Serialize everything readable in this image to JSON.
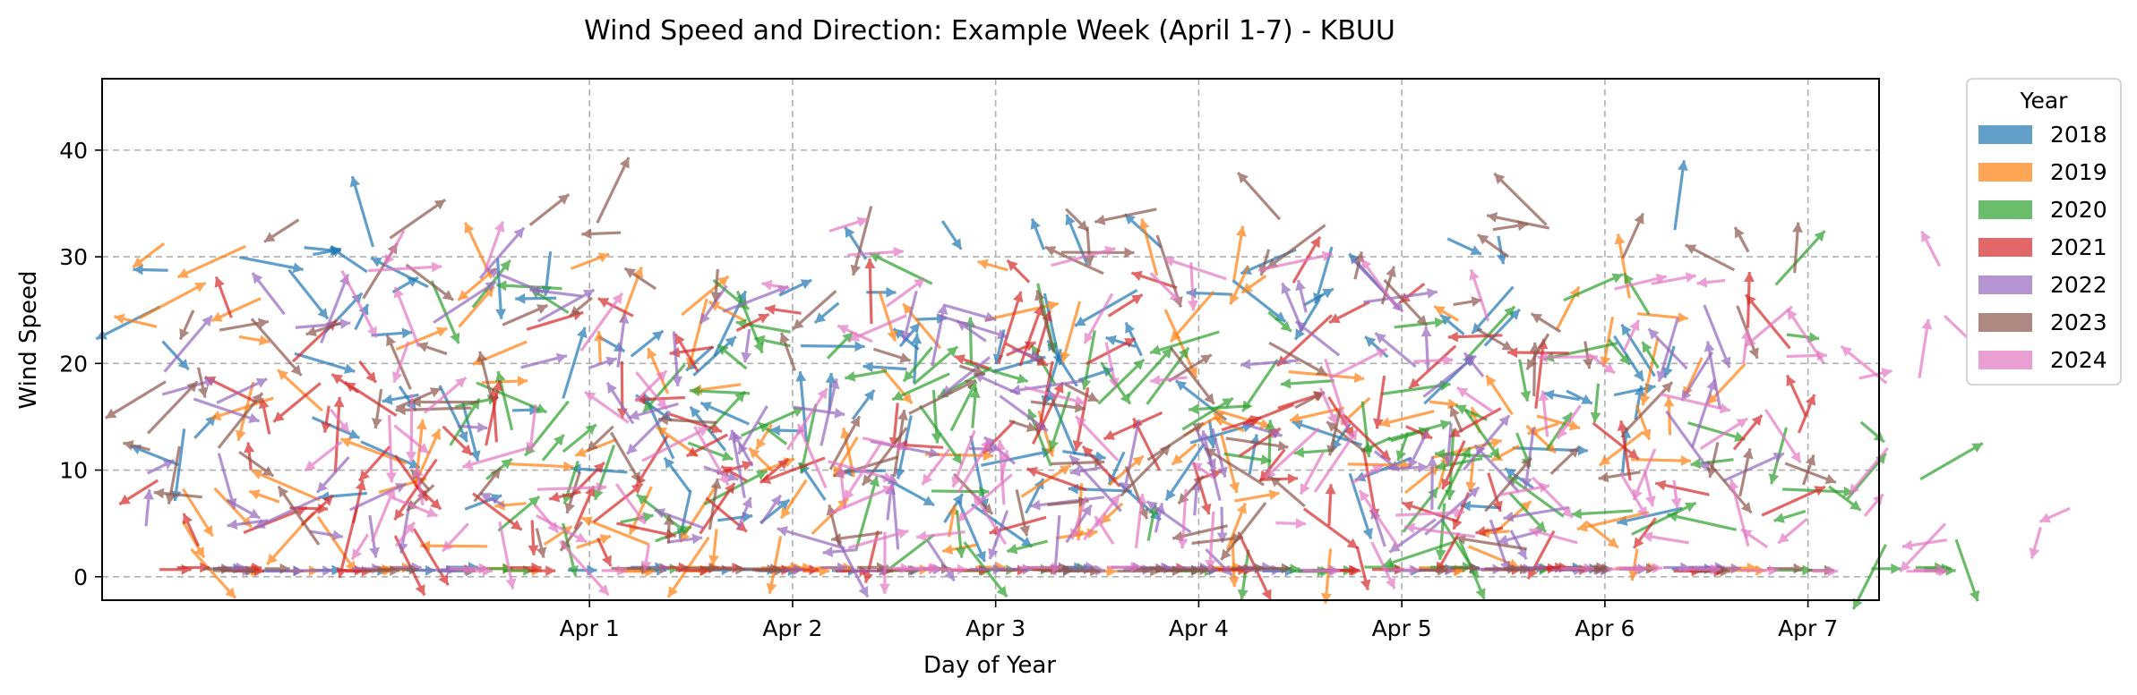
{
  "chart_data": {
    "type": "quiver",
    "title": "Wind Speed and Direction: Example Week (April 1-7) - KBUU",
    "xlabel": "Day of Year",
    "ylabel": "Wind Speed",
    "xlim": [
      -1.4,
      7.35
    ],
    "ylim": [
      -2.2,
      46.7
    ],
    "x_ticks": [
      1,
      2,
      3,
      4,
      5,
      6,
      7
    ],
    "x_tick_labels": [
      "Apr 1",
      "Apr 2",
      "Apr 3",
      "Apr 4",
      "Apr 5",
      "Apr 6",
      "Apr 7"
    ],
    "y_ticks": [
      0,
      10,
      20,
      30,
      40
    ],
    "y_tick_labels": [
      "0",
      "10",
      "20",
      "30",
      "40"
    ],
    "grid": true,
    "legend": {
      "title": "Year",
      "position": "outside-right",
      "entries": [
        "2018",
        "2019",
        "2020",
        "2021",
        "2022",
        "2023",
        "2024"
      ]
    },
    "series": [
      {
        "name": "2018",
        "color": "#1f77b4",
        "x_range": [
          -1.2,
          6.4
        ],
        "y_range": [
          3,
          41
        ],
        "points": 150
      },
      {
        "name": "2019",
        "color": "#ff7f0e",
        "x_range": [
          -1.3,
          6.7
        ],
        "y_range": [
          0.5,
          39
        ],
        "points": 150
      },
      {
        "name": "2020",
        "color": "#2ca02c",
        "x_range": [
          0.2,
          7.9
        ],
        "y_range": [
          0.5,
          35
        ],
        "points": 140
      },
      {
        "name": "2021",
        "color": "#d62728",
        "x_range": [
          -1.2,
          7.0
        ],
        "y_range": [
          0.5,
          34
        ],
        "points": 150
      },
      {
        "name": "2022",
        "color": "#9467bd",
        "x_range": [
          -1.2,
          6.6
        ],
        "y_range": [
          0.5,
          37
        ],
        "points": 150
      },
      {
        "name": "2023",
        "color": "#8c564b",
        "x_range": [
          -1.2,
          7.0
        ],
        "y_range": [
          0.5,
          44
        ],
        "points": 150
      },
      {
        "name": "2024",
        "color": "#e377c2",
        "x_range": [
          -0.3,
          8.3
        ],
        "y_range": [
          0.5,
          41
        ],
        "points": 150
      }
    ]
  }
}
